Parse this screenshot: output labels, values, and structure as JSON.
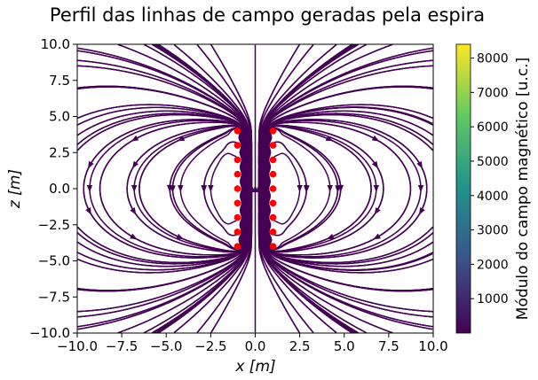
{
  "chart_data": {
    "type": "streamplot",
    "title": "Perfil das linhas de campo geradas pela espira",
    "xlabel": "x [m]",
    "ylabel": "z [m]",
    "xlim": [
      -10.0,
      10.0
    ],
    "ylim": [
      -10.0,
      10.0
    ],
    "x_ticks": [
      -10.0,
      -7.5,
      -5.0,
      -2.5,
      0.0,
      2.5,
      5.0,
      7.5,
      10.0
    ],
    "x_tick_labels": [
      "−10.0",
      "−7.5",
      "−5.0",
      "−2.5",
      "0.0",
      "2.5",
      "5.0",
      "7.5",
      "10.0"
    ],
    "y_ticks": [
      -10.0,
      -7.5,
      -5.0,
      -2.5,
      0.0,
      2.5,
      5.0,
      7.5,
      10.0
    ],
    "y_tick_labels": [
      "−10.0",
      "−7.5",
      "−5.0",
      "−2.5",
      "0.0",
      "2.5",
      "5.0",
      "7.5",
      "10.0"
    ],
    "grid": false,
    "line_color": "#440154",
    "colorbar": {
      "label": "Módulo do campo magnético [u.c.]",
      "min": 0,
      "max": 8400,
      "ticks": [
        1000,
        2000,
        3000,
        4000,
        5000,
        6000,
        7000,
        8000
      ],
      "tick_labels": [
        "1000",
        "2000",
        "3000",
        "4000",
        "5000",
        "6000",
        "7000",
        "8000"
      ],
      "colormap": "viridis",
      "colors": [
        "#440154",
        "#3b528b",
        "#21918c",
        "#5ec962",
        "#fde725"
      ]
    },
    "loop_points": {
      "color": "#ff0000",
      "x": [
        -1,
        -1,
        -1,
        -1,
        -1,
        -1,
        -1,
        -1,
        -1,
        1,
        1,
        1,
        1,
        1,
        1,
        1,
        1,
        1
      ],
      "z": [
        4,
        3,
        2,
        1,
        0,
        -1,
        -2,
        -3,
        -4,
        4,
        3,
        2,
        1,
        0,
        -1,
        -2,
        -3,
        -4
      ]
    }
  }
}
